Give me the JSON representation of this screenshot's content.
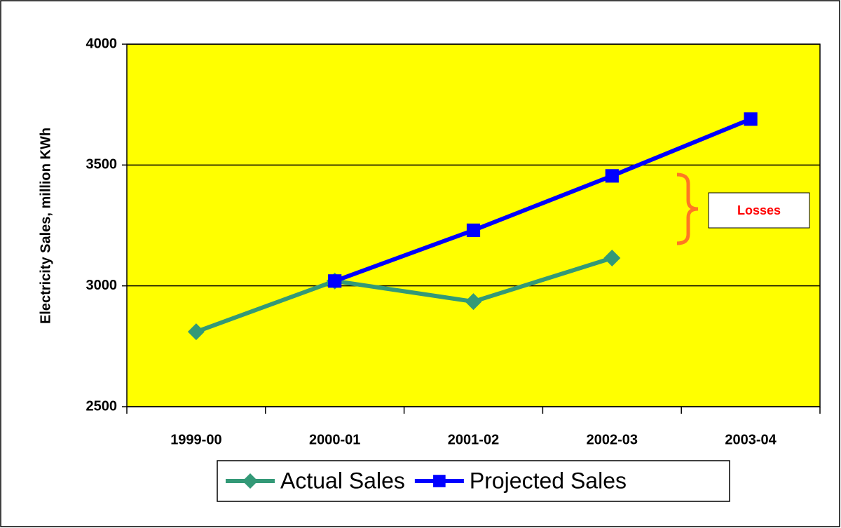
{
  "chart_data": {
    "type": "line",
    "y_label": "Electricity Sales, million KWh",
    "annotation": "Losses",
    "categories": [
      "1999-00",
      "2000-01",
      "2001-02",
      "2002-03",
      "2003-04"
    ],
    "series": [
      {
        "name": "Actual Sales",
        "color": "#339977",
        "marker": "diamond",
        "values": [
          2810,
          3020,
          2935,
          3115,
          null
        ]
      },
      {
        "name": "Projected Sales",
        "color": "#0000ff",
        "marker": "square",
        "values": [
          null,
          3020,
          3230,
          3455,
          3690
        ]
      }
    ],
    "ylim": [
      2500,
      4000
    ],
    "yticks": [
      2500,
      3000,
      3500,
      4000
    ],
    "grid": true,
    "plot_background": "#ffff00",
    "legend": "bottom"
  }
}
